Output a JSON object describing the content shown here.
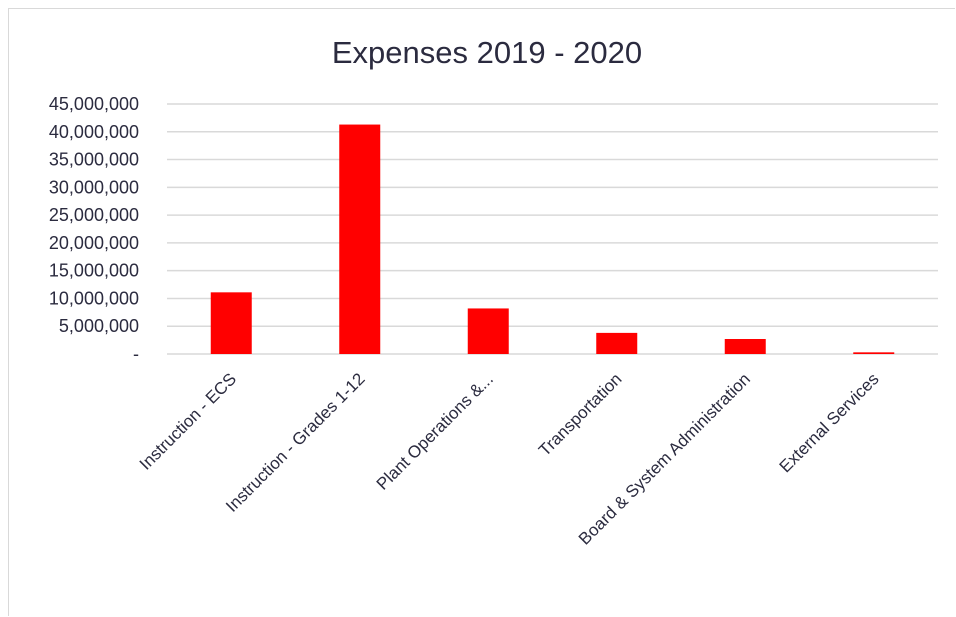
{
  "chart_data": {
    "type": "bar",
    "title": "Expenses 2019 - 2020",
    "xlabel": "",
    "ylabel": "",
    "categories": [
      "Instruction - ECS",
      "Instruction - Grades 1-12",
      "Plant Operations &...",
      "Transportation",
      "Board & System Administration",
      "External Services"
    ],
    "values": [
      11100000,
      41300000,
      8200000,
      3800000,
      2700000,
      300000
    ],
    "ylim": [
      0,
      45000000
    ],
    "yticks": [
      0,
      5000000,
      10000000,
      15000000,
      20000000,
      25000000,
      30000000,
      35000000,
      40000000,
      45000000
    ],
    "ytick_labels": [
      "-",
      "5,000,000",
      "10,000,000",
      "15,000,000",
      "20,000,000",
      "25,000,000",
      "30,000,000",
      "35,000,000",
      "40,000,000",
      "45,000,000"
    ],
    "bar_color": "#ff0000",
    "grid": true,
    "legend": "none"
  }
}
